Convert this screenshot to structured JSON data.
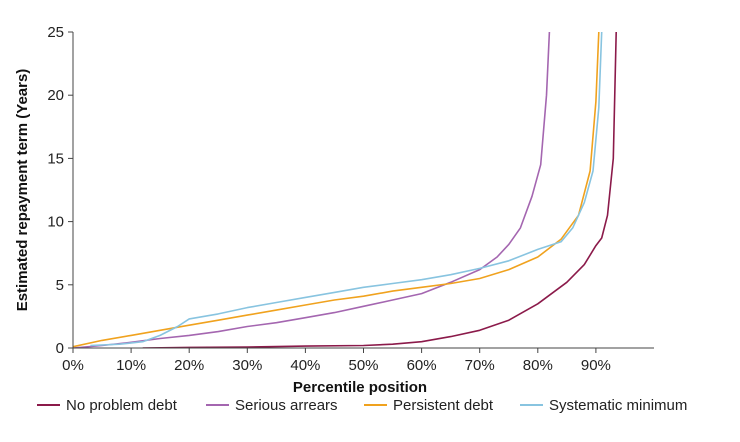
{
  "chart_data": {
    "type": "line",
    "title": "",
    "xlabel": "Percentile position",
    "ylabel": "Estimated repayment term (Years)",
    "xlim": [
      0,
      100
    ],
    "ylim": [
      0,
      25
    ],
    "x_ticks": [
      0,
      10,
      20,
      30,
      40,
      50,
      60,
      70,
      80,
      90
    ],
    "x_tick_labels": [
      "0%",
      "10%",
      "20%",
      "30%",
      "40%",
      "50%",
      "60%",
      "70%",
      "80%",
      "90%"
    ],
    "y_ticks": [
      0,
      5,
      10,
      15,
      20,
      25
    ],
    "y_tick_labels": [
      "0",
      "5",
      "10",
      "15",
      "20",
      "25"
    ],
    "grid": false,
    "legend_position": "bottom",
    "series": [
      {
        "name": "No problem debt",
        "color": "#8b1a4a",
        "points": [
          [
            12,
            0
          ],
          [
            20,
            0.05
          ],
          [
            30,
            0.08
          ],
          [
            40,
            0.15
          ],
          [
            50,
            0.2
          ],
          [
            55,
            0.3
          ],
          [
            60,
            0.5
          ],
          [
            65,
            0.9
          ],
          [
            70,
            1.4
          ],
          [
            75,
            2.2
          ],
          [
            80,
            3.5
          ],
          [
            85,
            5.2
          ],
          [
            88,
            6.6
          ],
          [
            90,
            8.1
          ],
          [
            91,
            8.7
          ],
          [
            92,
            10.5
          ],
          [
            93,
            15
          ],
          [
            93.5,
            25
          ]
        ]
      },
      {
        "name": "Serious arrears",
        "color": "#a466b0",
        "points": [
          [
            0,
            0
          ],
          [
            5,
            0.2
          ],
          [
            10,
            0.45
          ],
          [
            15,
            0.75
          ],
          [
            20,
            1
          ],
          [
            25,
            1.3
          ],
          [
            30,
            1.7
          ],
          [
            35,
            2
          ],
          [
            40,
            2.4
          ],
          [
            45,
            2.8
          ],
          [
            50,
            3.3
          ],
          [
            55,
            3.8
          ],
          [
            60,
            4.3
          ],
          [
            65,
            5.2
          ],
          [
            70,
            6.2
          ],
          [
            73,
            7.2
          ],
          [
            75,
            8.2
          ],
          [
            77,
            9.5
          ],
          [
            79,
            12
          ],
          [
            80.5,
            14.5
          ],
          [
            81.5,
            20
          ],
          [
            82,
            25
          ]
        ]
      },
      {
        "name": "Persistent debt",
        "color": "#f0a21e",
        "points": [
          [
            0,
            0.1
          ],
          [
            5,
            0.6
          ],
          [
            10,
            1
          ],
          [
            15,
            1.4
          ],
          [
            20,
            1.8
          ],
          [
            25,
            2.2
          ],
          [
            30,
            2.6
          ],
          [
            35,
            3
          ],
          [
            40,
            3.4
          ],
          [
            45,
            3.8
          ],
          [
            50,
            4.1
          ],
          [
            55,
            4.5
          ],
          [
            60,
            4.8
          ],
          [
            65,
            5.1
          ],
          [
            70,
            5.5
          ],
          [
            75,
            6.2
          ],
          [
            80,
            7.2
          ],
          [
            84,
            8.6
          ],
          [
            87,
            10.5
          ],
          [
            89,
            14
          ],
          [
            90,
            19.5
          ],
          [
            90.5,
            25
          ]
        ]
      },
      {
        "name": "Systematic minimum",
        "color": "#88c4e0",
        "points": [
          [
            3,
            0.2
          ],
          [
            8,
            0.3
          ],
          [
            12,
            0.5
          ],
          [
            15,
            1
          ],
          [
            18,
            1.7
          ],
          [
            20,
            2.3
          ],
          [
            25,
            2.7
          ],
          [
            30,
            3.2
          ],
          [
            35,
            3.6
          ],
          [
            40,
            4
          ],
          [
            45,
            4.4
          ],
          [
            50,
            4.8
          ],
          [
            55,
            5.1
          ],
          [
            60,
            5.4
          ],
          [
            65,
            5.8
          ],
          [
            70,
            6.3
          ],
          [
            75,
            6.9
          ],
          [
            80,
            7.8
          ],
          [
            84,
            8.4
          ],
          [
            86,
            9.5
          ],
          [
            88,
            11.5
          ],
          [
            89.5,
            14
          ],
          [
            90.5,
            19
          ],
          [
            91,
            25
          ]
        ]
      }
    ]
  }
}
